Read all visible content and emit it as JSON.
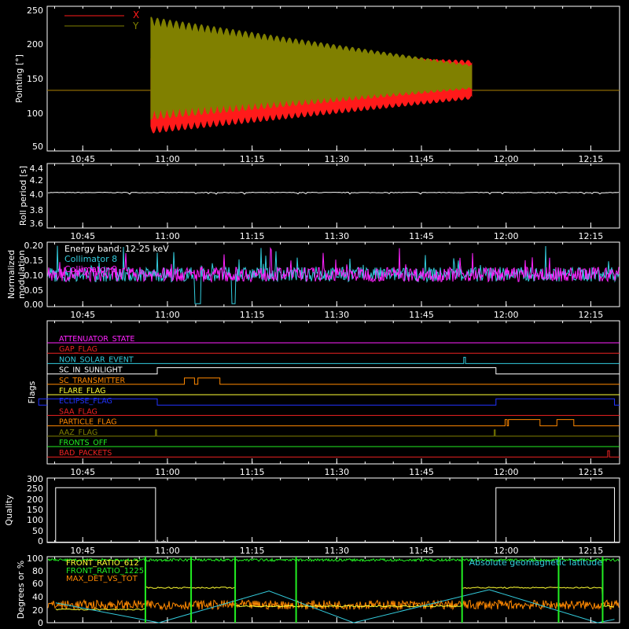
{
  "x_ticks": [
    "10:45",
    "11:00",
    "11:15",
    "11:30",
    "11:45",
    "12:00",
    "12:15"
  ],
  "colors": {
    "x": "#ff1a1a",
    "y": "#808000",
    "cyan": "#33ccdd",
    "magenta": "#ff22ff",
    "green": "#22ee22",
    "yellow": "#ffff33",
    "orange": "#ff8800",
    "white": "#ffffff"
  },
  "chart_data": [
    {
      "type": "line",
      "ylabel": "Pointing [°]",
      "yticks": [
        "50",
        "100",
        "150",
        "200",
        "250"
      ],
      "ylim": [
        40,
        250
      ],
      "series": [
        {
          "name": "X",
          "color": "#ff1a1a",
          "baseline": 128,
          "band_time_hours": [
            10.95,
            11.9
          ],
          "upper_start": 185,
          "upper_end": 172,
          "lower_start": 65,
          "lower_end": 115
        },
        {
          "name": "Y",
          "color": "#808000",
          "baseline": 128,
          "band_time_hours": [
            10.95,
            11.9
          ],
          "upper_start": 235,
          "upper_end": 165,
          "lower_start": 85,
          "lower_end": 130
        }
      ]
    },
    {
      "type": "line",
      "ylabel": "Roll period [s]",
      "yticks": [
        "3.6",
        "3.8",
        "4.0",
        "4.2",
        "4.4"
      ],
      "ylim": [
        3.5,
        4.5
      ],
      "series": [
        {
          "name": "",
          "color": "#ffffff",
          "mean": 4.05
        }
      ]
    },
    {
      "type": "line",
      "ylabel": [
        "Normalized",
        "modulation"
      ],
      "yticks": [
        "0.00",
        "0.05",
        "0.10",
        "0.15",
        "0.20"
      ],
      "ylim": [
        -0.01,
        0.21
      ],
      "annotations": [
        "Energy band: 12-25 keV",
        "Collimator 8",
        "Collimator 9"
      ],
      "series": [
        {
          "name": "Collimator 8",
          "color": "#33ccdd",
          "mean": 0.1
        },
        {
          "name": "Collimator 9",
          "color": "#ff22ff",
          "mean": 0.1
        }
      ]
    },
    {
      "type": "line",
      "ylabel": "Flags",
      "flags": [
        {
          "name": "ATTENUATOR_STATE",
          "color": "#ff22ff",
          "segments": []
        },
        {
          "name": "GAP_FLAG",
          "color": "#ee2222",
          "segments": []
        },
        {
          "name": "NON_SOLAR_EVENT",
          "color": "#33ccdd",
          "segments": [
            [
              11.875,
              11.88
            ]
          ]
        },
        {
          "name": "SC_IN_SUNLIGHT",
          "color": "#ffffff",
          "segments": [
            [
              10.97,
              11.97
            ]
          ]
        },
        {
          "name": "SC_TRANSMITTER",
          "color": "#ff8800",
          "segments": [
            [
              11.05,
              11.08
            ],
            [
              11.09,
              11.155
            ]
          ]
        },
        {
          "name": "FLARE_FLAG",
          "color": "#ffff33",
          "segments": []
        },
        {
          "name": "ECLIPSE_FLAG",
          "color": "#2233ff",
          "segments": [
            [
              10.62,
              10.97
            ],
            [
              11.97,
              12.32
            ]
          ]
        },
        {
          "name": "SAA_FLAG",
          "color": "#ee2222",
          "segments": []
        },
        {
          "name": "PARTICLE_FLAG",
          "color": "#ff8800",
          "segments": [
            [
              11.997,
              12.003
            ],
            [
              12.007,
              12.1
            ],
            [
              12.15,
              12.2
            ]
          ]
        },
        {
          "name": "AAZ_FLAG",
          "color": "#808000",
          "segments": [
            [
              10.965,
              10.968
            ],
            [
              11.965,
              11.968
            ]
          ]
        },
        {
          "name": "FRONTS_OFF",
          "color": "#22ee22",
          "segments": []
        },
        {
          "name": "BAD_PACKETS",
          "color": "#ee2222",
          "segments": [
            [
              12.3,
              12.305
            ]
          ]
        }
      ]
    },
    {
      "type": "line",
      "ylabel": "Quality",
      "yticks": [
        "0",
        "50",
        "100",
        "150",
        "200",
        "250",
        "300"
      ],
      "ylim": [
        0,
        300
      ],
      "series": [
        {
          "name": "",
          "color": "#ffffff",
          "segments": [
            {
              "x": [
                10.67,
                10.965
              ],
              "y": 255
            },
            {
              "x": [
                11.97,
                12.32
              ],
              "y": 255
            }
          ]
        }
      ]
    },
    {
      "type": "line",
      "ylabel": "Degrees or %",
      "yticks": [
        "0",
        "20",
        "40",
        "60",
        "80",
        "100"
      ],
      "ylim": [
        0,
        100
      ],
      "series": [
        {
          "name": "FRONT_RATIO_612",
          "color": "#ffff33",
          "levels": [
            [
              10.67,
              10.935,
              20
            ],
            [
              10.935,
              11.2,
              53
            ],
            [
              11.2,
              11.87,
              25
            ],
            [
              11.87,
              12.285,
              53
            ],
            [
              12.285,
              12.32,
              25
            ]
          ]
        },
        {
          "name": "FRONT_RATIO_1225",
          "color": "#22ee22",
          "level": 97,
          "spikes": [
            10.935,
            11.07,
            11.2,
            11.38,
            11.87,
            12.155,
            12.285
          ]
        },
        {
          "name": "MAX_DET_VS_TOT",
          "color": "#ff8800",
          "mean": 27
        },
        {
          "name": "Absolute geomagnetic latitude",
          "color": "#33ccdd",
          "zigzag": [
            [
              10.67,
              30
            ],
            [
              10.975,
              0
            ],
            [
              11.3,
              48
            ],
            [
              11.55,
              0
            ],
            [
              11.95,
              50
            ],
            [
              12.27,
              0
            ],
            [
              12.32,
              5
            ]
          ]
        }
      ]
    }
  ]
}
